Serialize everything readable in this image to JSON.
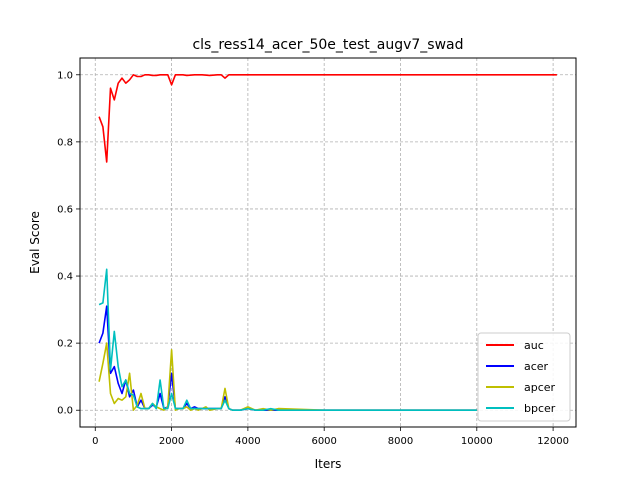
{
  "chart_data": {
    "type": "line",
    "title": "cls_ress14_acer_50e_test_augv7_swad",
    "xlabel": "Iters",
    "ylabel": "Eval Score",
    "xlim": [
      -400,
      12600
    ],
    "ylim": [
      -0.05,
      1.05
    ],
    "xticks": [
      0,
      2000,
      4000,
      6000,
      8000,
      10000,
      12000
    ],
    "yticks": [
      0.0,
      0.2,
      0.4,
      0.6,
      0.8,
      1.0
    ],
    "xtick_labels": [
      "0",
      "2000",
      "4000",
      "6000",
      "8000",
      "10000",
      "12000"
    ],
    "ytick_labels": [
      "0.0",
      "0.2",
      "0.4",
      "0.6",
      "0.8",
      "1.0"
    ],
    "grid": true,
    "legend_position": "lower-right",
    "series": [
      {
        "name": "auc",
        "color": "#ff0000",
        "x": [
          100,
          200,
          300,
          400,
          500,
          600,
          700,
          800,
          900,
          1000,
          1100,
          1200,
          1300,
          1400,
          1500,
          1600,
          1700,
          1800,
          1900,
          2000,
          2100,
          2200,
          2300,
          2400,
          2600,
          2800,
          3000,
          3200,
          3300,
          3400,
          3500,
          3600,
          4000,
          5000,
          6000,
          8000,
          10000,
          12100
        ],
        "y": [
          0.875,
          0.845,
          0.74,
          0.96,
          0.925,
          0.975,
          0.99,
          0.975,
          0.985,
          1.0,
          0.995,
          0.995,
          1.0,
          1.0,
          0.998,
          0.998,
          1.0,
          1.0,
          1.0,
          0.97,
          1.0,
          1.0,
          1.0,
          0.998,
          1.0,
          1.0,
          0.998,
          1.0,
          1.0,
          0.99,
          1.0,
          1.0,
          1.0,
          1.0,
          1.0,
          1.0,
          1.0,
          1.0
        ]
      },
      {
        "name": "acer",
        "color": "#0000ff",
        "x": [
          100,
          200,
          300,
          400,
          500,
          600,
          700,
          800,
          900,
          1000,
          1100,
          1200,
          1300,
          1400,
          1500,
          1600,
          1700,
          1800,
          1900,
          2000,
          2100,
          2200,
          2300,
          2400,
          2500,
          2600,
          2700,
          2800,
          2900,
          3000,
          3200,
          3300,
          3400,
          3500,
          3600,
          3800,
          4000,
          4200,
          4400,
          4600,
          4800,
          6000,
          8000,
          10000
        ],
        "y": [
          0.2,
          0.23,
          0.31,
          0.11,
          0.13,
          0.08,
          0.05,
          0.09,
          0.04,
          0.06,
          0.01,
          0.03,
          0.005,
          0.005,
          0.015,
          0.01,
          0.05,
          0.005,
          0.01,
          0.11,
          0.005,
          0.005,
          0.005,
          0.02,
          0.005,
          0.01,
          0.005,
          0.005,
          0.005,
          0.005,
          0.005,
          0.005,
          0.04,
          0.005,
          0.0,
          0.0,
          0.005,
          0.0,
          0.0,
          0.0,
          0.0,
          0.0,
          0.0,
          0.0
        ]
      },
      {
        "name": "apcer",
        "color": "#bfbf00",
        "x": [
          100,
          200,
          300,
          400,
          500,
          600,
          700,
          800,
          900,
          1000,
          1100,
          1200,
          1300,
          1400,
          1500,
          1600,
          1700,
          1800,
          1900,
          2000,
          2100,
          2200,
          2300,
          2400,
          2500,
          2600,
          2700,
          2800,
          2900,
          3000,
          3200,
          3300,
          3400,
          3500,
          3600,
          3800,
          4000,
          4200,
          4400,
          4600,
          4800,
          6000,
          8000,
          10000
        ],
        "y": [
          0.085,
          0.14,
          0.2,
          0.05,
          0.02,
          0.035,
          0.03,
          0.04,
          0.11,
          0.0,
          0.015,
          0.05,
          0.005,
          0.005,
          0.02,
          0.01,
          0.005,
          0.0,
          0.01,
          0.18,
          0.0,
          0.005,
          0.005,
          0.01,
          0.0,
          0.005,
          0.0,
          0.005,
          0.01,
          0.0,
          0.005,
          0.005,
          0.065,
          0.005,
          0.0,
          0.0,
          0.01,
          0.0,
          0.005,
          0.0,
          0.005,
          0.0,
          0.0,
          0.0
        ]
      },
      {
        "name": "bpcer",
        "color": "#00bfbf",
        "x": [
          100,
          200,
          300,
          400,
          500,
          600,
          700,
          800,
          900,
          1000,
          1100,
          1200,
          1300,
          1400,
          1500,
          1600,
          1700,
          1800,
          1900,
          2000,
          2100,
          2200,
          2300,
          2400,
          2500,
          2600,
          2700,
          2800,
          2900,
          3000,
          3200,
          3300,
          3400,
          3500,
          3600,
          3800,
          4000,
          4200,
          4400,
          4600,
          4800,
          6000,
          8000,
          10000
        ],
        "y": [
          0.315,
          0.32,
          0.42,
          0.12,
          0.235,
          0.13,
          0.07,
          0.09,
          0.05,
          0.045,
          0.01,
          0.005,
          0.005,
          0.005,
          0.02,
          0.005,
          0.09,
          0.005,
          0.005,
          0.05,
          0.005,
          0.005,
          0.005,
          0.03,
          0.005,
          0.005,
          0.005,
          0.005,
          0.005,
          0.005,
          0.005,
          0.005,
          0.03,
          0.005,
          0.0,
          0.0,
          0.005,
          0.0,
          0.0,
          0.005,
          0.0,
          0.0,
          0.0,
          0.0
        ]
      }
    ]
  }
}
